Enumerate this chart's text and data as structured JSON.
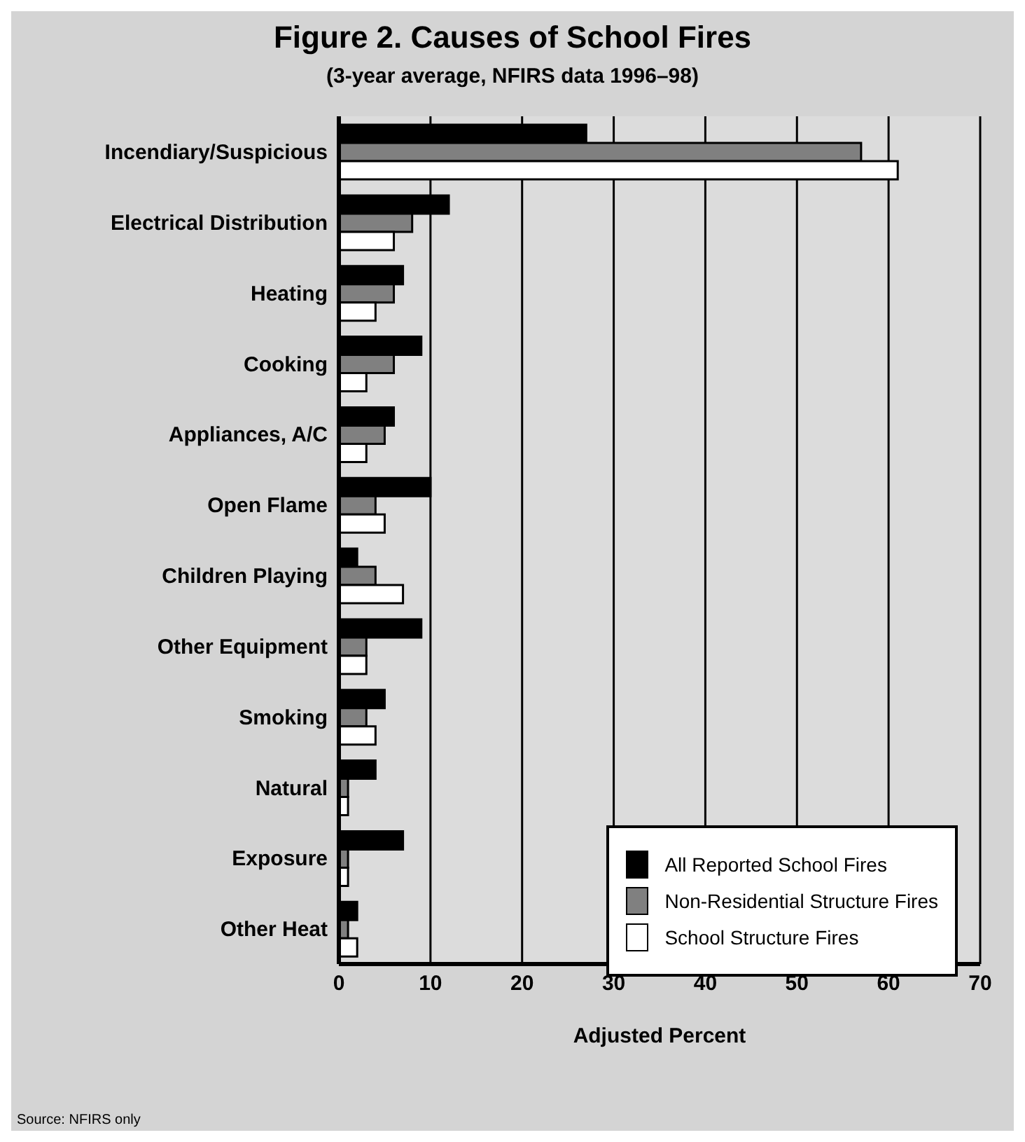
{
  "chart_data": {
    "type": "bar",
    "orientation": "horizontal",
    "title": "Figure 2.  Causes of School Fires",
    "subtitle": "(3-year average, NFIRS data 1996–98)",
    "xlabel": "Adjusted Percent",
    "categories": [
      "Incendiary/Suspicious",
      "Electrical Distribution",
      "Heating",
      "Cooking",
      "Appliances, A/C",
      "Open Flame",
      "Children Playing",
      "Other Equipment",
      "Smoking",
      "Natural",
      "Exposure",
      "Other Heat"
    ],
    "series": [
      {
        "name": "All Reported School Fires",
        "color": "#000000",
        "values": [
          27,
          12,
          7,
          9,
          6,
          10,
          2,
          9,
          5,
          4,
          7,
          2
        ]
      },
      {
        "name": "Non-Residential Structure Fires",
        "color": "#808080",
        "values": [
          57,
          8,
          6,
          6,
          5,
          4,
          4,
          3,
          3,
          1,
          1,
          1
        ]
      },
      {
        "name": "School Structure Fires",
        "color": "#ffffff",
        "values": [
          61,
          6,
          4,
          3,
          3,
          5,
          7,
          3,
          4,
          1,
          1,
          2
        ]
      }
    ],
    "xlim": [
      0,
      70
    ],
    "xticks": [
      0,
      10,
      20,
      30,
      40,
      50,
      60,
      70
    ],
    "grid": "x",
    "legend": "bottom right",
    "annotations": [
      "Source:  NFIRS only"
    ]
  }
}
